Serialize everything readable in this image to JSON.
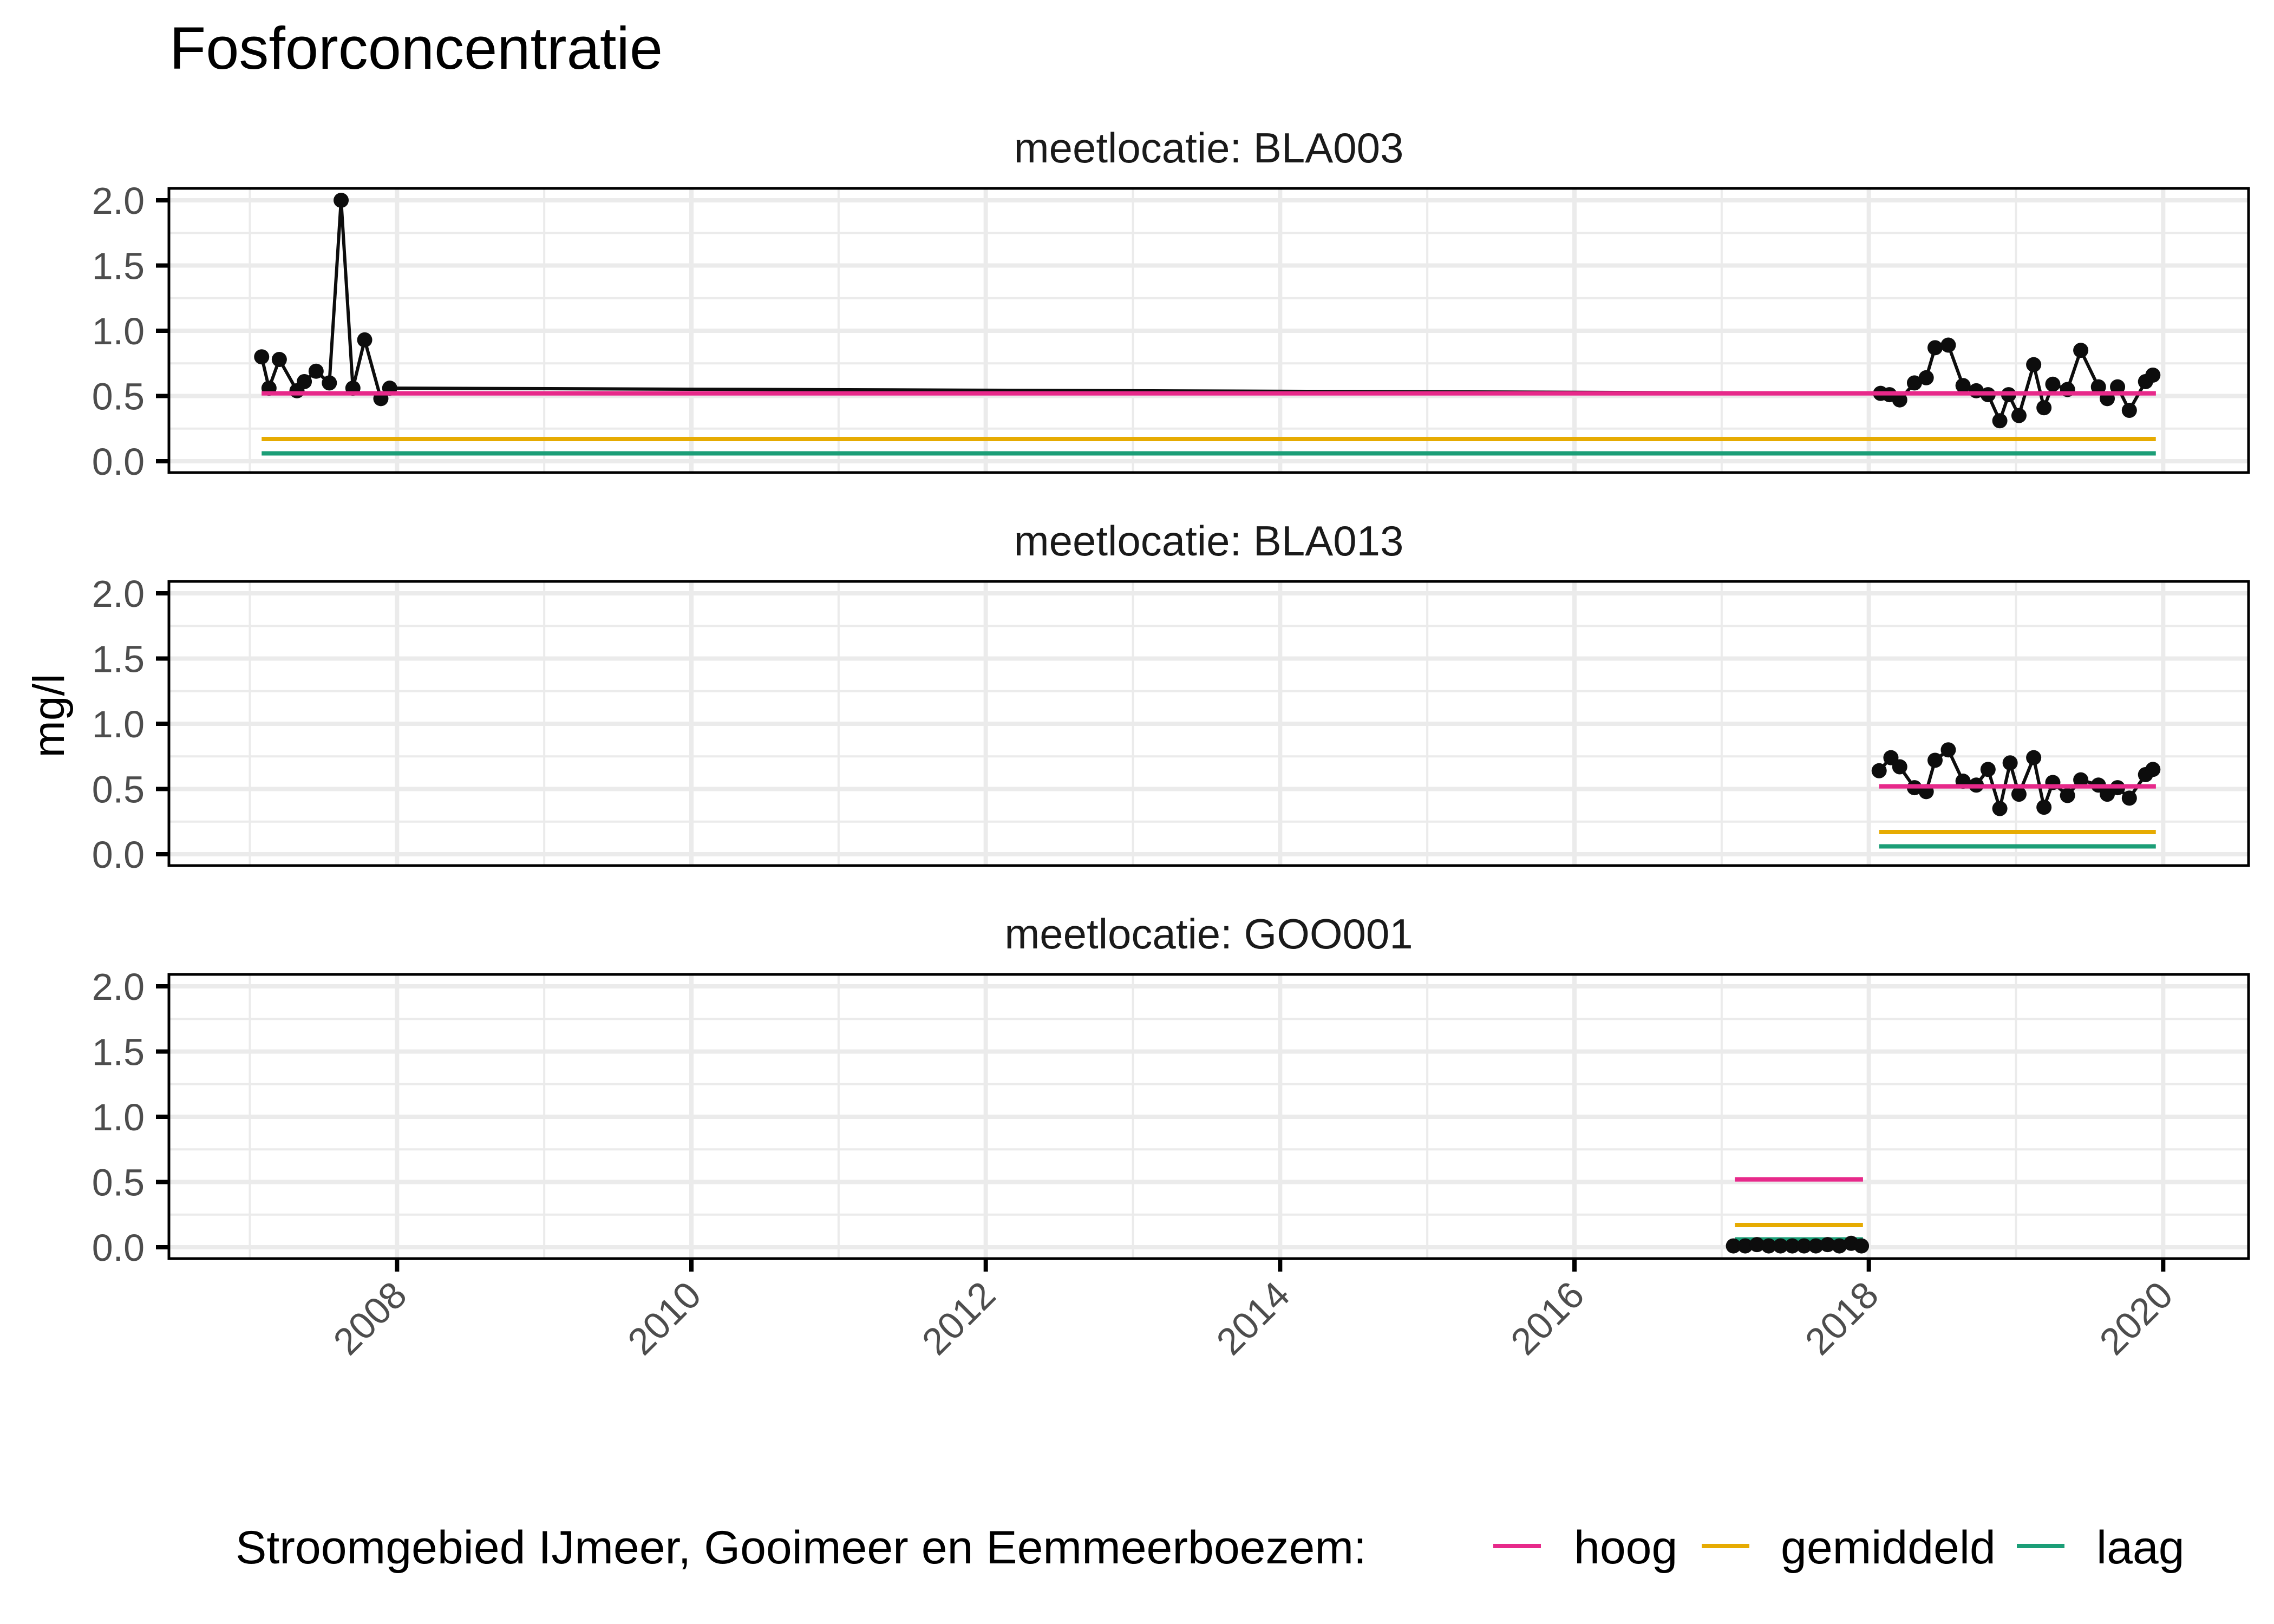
{
  "chart_data": {
    "type": "line",
    "title": "Fosforconcentratie",
    "xlabel": "",
    "ylabel": "mg/l",
    "ylim": [
      0,
      2.0
    ],
    "xlim": [
      2006.45,
      2020.58
    ],
    "yticks": [
      "0.0",
      "0.5",
      "1.0",
      "1.5",
      "2.0"
    ],
    "xticks": [
      "2008",
      "2010",
      "2012",
      "2014",
      "2016",
      "2018",
      "2020"
    ],
    "grid": true,
    "legend_position": "bottom",
    "legend": {
      "title": "Stroomgebied IJmeer, Gooimeer en Eemmeerboezem:",
      "entries": [
        {
          "label": "hoog",
          "color": "#E7298A"
        },
        {
          "label": "gemiddeld",
          "color": "#E6AB02"
        },
        {
          "label": "laag",
          "color": "#1B9E77"
        }
      ]
    },
    "facets": [
      {
        "label": "meetlocatie: BLA003",
        "reference_lines": {
          "hoog": {
            "value": 0.52,
            "x_start": 2007.08,
            "x_end": 2019.95
          },
          "gemiddeld": {
            "value": 0.17,
            "x_start": 2007.08,
            "x_end": 2019.95
          },
          "laag": {
            "value": 0.06,
            "x_start": 2007.08,
            "x_end": 2019.95
          }
        },
        "points": [
          [
            2007.08,
            0.8
          ],
          [
            2007.13,
            0.56
          ],
          [
            2007.2,
            0.78
          ],
          [
            2007.32,
            0.54
          ],
          [
            2007.37,
            0.61
          ],
          [
            2007.45,
            0.69
          ],
          [
            2007.54,
            0.6
          ],
          [
            2007.62,
            2.0
          ],
          [
            2007.7,
            0.56
          ],
          [
            2007.78,
            0.93
          ],
          [
            2007.89,
            0.48
          ],
          [
            2007.95,
            0.56
          ],
          [
            2018.08,
            0.52
          ],
          [
            2018.14,
            0.51
          ],
          [
            2018.21,
            0.47
          ],
          [
            2018.31,
            0.6
          ],
          [
            2018.39,
            0.64
          ],
          [
            2018.45,
            0.87
          ],
          [
            2018.54,
            0.89
          ],
          [
            2018.64,
            0.58
          ],
          [
            2018.73,
            0.54
          ],
          [
            2018.81,
            0.51
          ],
          [
            2018.89,
            0.31
          ],
          [
            2018.95,
            0.51
          ],
          [
            2019.02,
            0.35
          ],
          [
            2019.12,
            0.74
          ],
          [
            2019.19,
            0.41
          ],
          [
            2019.25,
            0.59
          ],
          [
            2019.35,
            0.55
          ],
          [
            2019.44,
            0.85
          ],
          [
            2019.56,
            0.57
          ],
          [
            2019.62,
            0.48
          ],
          [
            2019.69,
            0.57
          ],
          [
            2019.77,
            0.39
          ],
          [
            2019.88,
            0.61
          ],
          [
            2019.93,
            0.66
          ]
        ]
      },
      {
        "label": "meetlocatie: BLA013",
        "reference_lines": {
          "hoog": {
            "value": 0.52,
            "x_start": 2018.07,
            "x_end": 2019.95
          },
          "gemiddeld": {
            "value": 0.17,
            "x_start": 2018.07,
            "x_end": 2019.95
          },
          "laag": {
            "value": 0.06,
            "x_start": 2018.07,
            "x_end": 2019.95
          }
        },
        "points": [
          [
            2018.07,
            0.64
          ],
          [
            2018.15,
            0.74
          ],
          [
            2018.21,
            0.67
          ],
          [
            2018.31,
            0.51
          ],
          [
            2018.39,
            0.48
          ],
          [
            2018.45,
            0.72
          ],
          [
            2018.54,
            0.8
          ],
          [
            2018.64,
            0.56
          ],
          [
            2018.73,
            0.53
          ],
          [
            2018.81,
            0.65
          ],
          [
            2018.89,
            0.35
          ],
          [
            2018.96,
            0.7
          ],
          [
            2019.02,
            0.46
          ],
          [
            2019.12,
            0.74
          ],
          [
            2019.19,
            0.36
          ],
          [
            2019.25,
            0.55
          ],
          [
            2019.35,
            0.45
          ],
          [
            2019.44,
            0.57
          ],
          [
            2019.56,
            0.53
          ],
          [
            2019.62,
            0.46
          ],
          [
            2019.69,
            0.51
          ],
          [
            2019.77,
            0.43
          ],
          [
            2019.88,
            0.61
          ],
          [
            2019.93,
            0.65
          ]
        ]
      },
      {
        "label": "meetlocatie: GOO001",
        "reference_lines": {
          "hoog": {
            "value": 0.52,
            "x_start": 2017.09,
            "x_end": 2017.96
          },
          "gemiddeld": {
            "value": 0.17,
            "x_start": 2017.09,
            "x_end": 2017.96
          },
          "laag": {
            "value": 0.06,
            "x_start": 2017.09,
            "x_end": 2017.96
          }
        },
        "points": [
          [
            2017.08,
            0.01
          ],
          [
            2017.16,
            0.01
          ],
          [
            2017.24,
            0.02
          ],
          [
            2017.32,
            0.01
          ],
          [
            2017.4,
            0.01
          ],
          [
            2017.48,
            0.01
          ],
          [
            2017.56,
            0.01
          ],
          [
            2017.64,
            0.01
          ],
          [
            2017.72,
            0.02
          ],
          [
            2017.8,
            0.01
          ],
          [
            2017.88,
            0.03
          ],
          [
            2017.95,
            0.01
          ]
        ]
      }
    ]
  }
}
